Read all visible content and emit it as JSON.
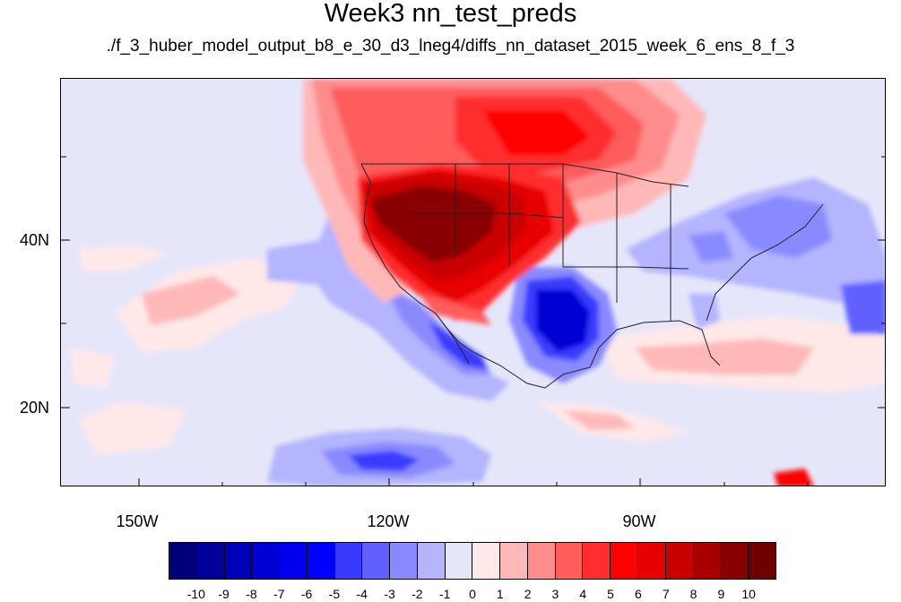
{
  "title": "Week3 nn_test_preds",
  "subtitle": "./f_3_huber_model_output_b8_e_30_d3_lneg4/diffs_nn_dataset_2015_week_6_ens_8_f_3",
  "axes": {
    "lat_labels": [
      "40N",
      "20N"
    ],
    "lon_labels": [
      "150W",
      "120W",
      "90W"
    ],
    "lon_range": [
      -160,
      -58
    ],
    "lat_range": [
      10,
      59
    ]
  },
  "colorbar": {
    "labels": [
      "-10",
      "-9",
      "-8",
      "-7",
      "-6",
      "-5",
      "-4",
      "-3",
      "-2",
      "-1",
      "0",
      "1",
      "2",
      "3",
      "4",
      "5",
      "6",
      "7",
      "8",
      "9",
      "10"
    ],
    "colors": [
      "#00007a",
      "#00009a",
      "#0000b8",
      "#0000d4",
      "#0000ee",
      "#0000ff",
      "#3a3aff",
      "#6060ff",
      "#8a8aff",
      "#b4b4ff",
      "#e6e6fa",
      "#ffe8e8",
      "#ffb8b8",
      "#ff8c8c",
      "#ff5c5c",
      "#ff2e2e",
      "#ff0000",
      "#e60000",
      "#c80000",
      "#a80000",
      "#880000",
      "#6e0000"
    ]
  },
  "colors": {
    "background_field": "#e6e6fa",
    "coast_line": "#222222"
  }
}
